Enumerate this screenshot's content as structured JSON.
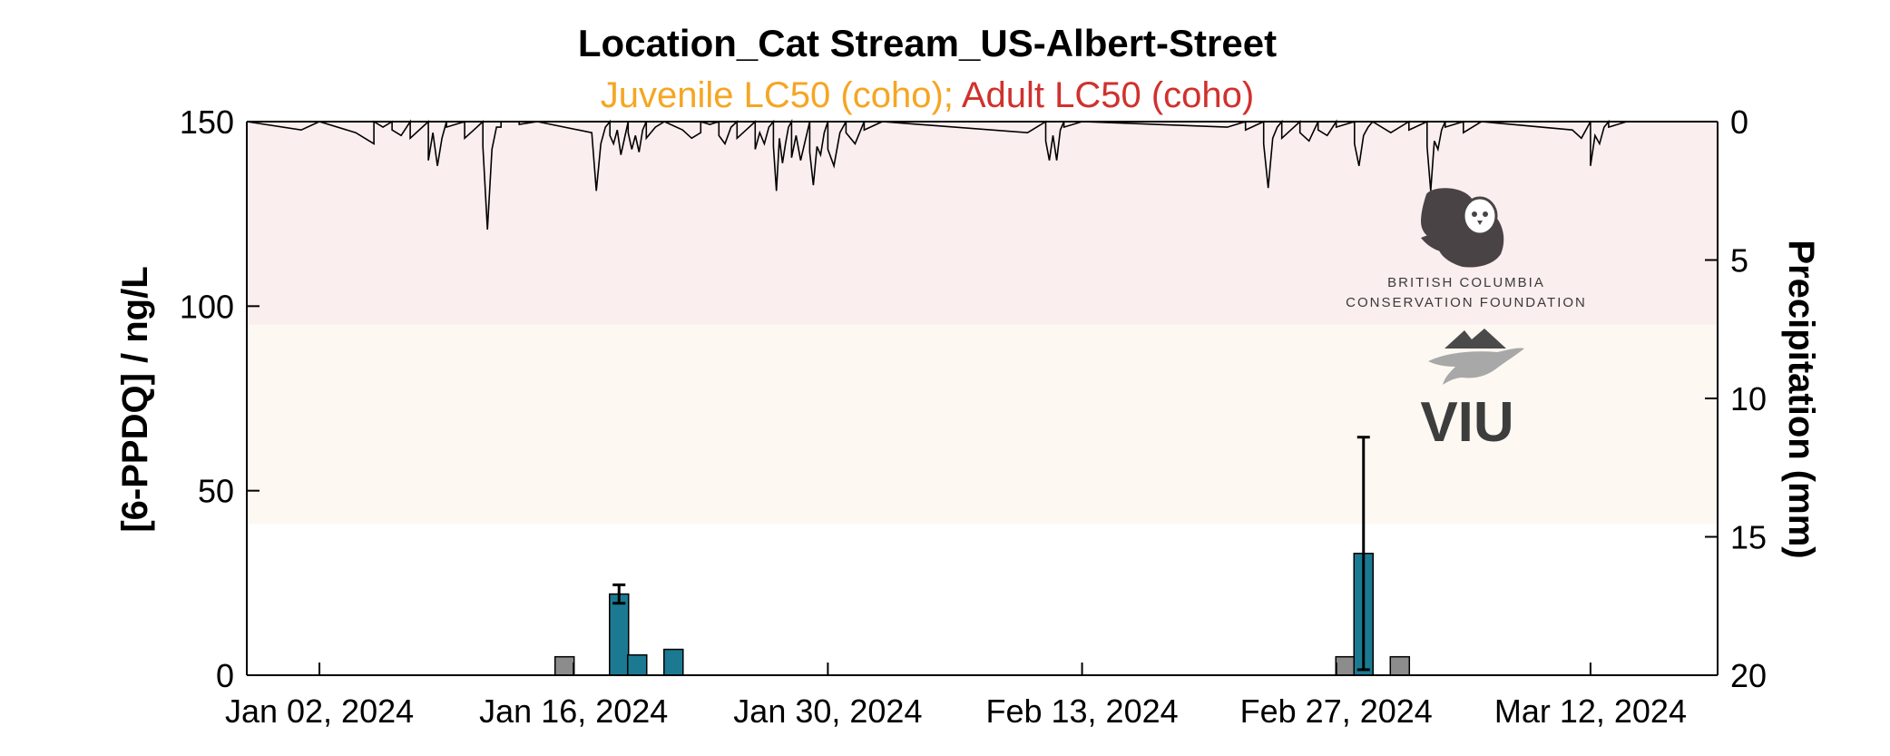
{
  "chart_data": {
    "type": "bar",
    "title": "Location_Cat Stream_US-Albert-Street",
    "subtitle_parts": [
      {
        "text": "Juvenile LC50 (coho)",
        "color": "#f5a623"
      },
      {
        "text": "; ",
        "color": "#f5a623"
      },
      {
        "text": "Adult LC50 (coho)",
        "color": "#d0312d"
      }
    ],
    "ylabel": "[6-PPDQ] / ng/L",
    "y2label": "Precipitation (mm)",
    "xlim": [
      "2023-12-29",
      "2024-03-19"
    ],
    "ylim": [
      0,
      150
    ],
    "y2lim": [
      0,
      20
    ],
    "y2_reversed": true,
    "xticks": [
      {
        "date": "2024-01-02",
        "label": "Jan 02, 2024"
      },
      {
        "date": "2024-01-16",
        "label": "Jan 16, 2024"
      },
      {
        "date": "2024-01-30",
        "label": "Jan 30, 2024"
      },
      {
        "date": "2024-02-13",
        "label": "Feb 13, 2024"
      },
      {
        "date": "2024-02-27",
        "label": "Feb 27, 2024"
      },
      {
        "date": "2024-03-12",
        "label": "Mar 12, 2024"
      }
    ],
    "yticks": [
      {
        "value": 0,
        "label": "0"
      },
      {
        "value": 50,
        "label": "50"
      },
      {
        "value": 100,
        "label": "100"
      },
      {
        "value": 150,
        "label": "150"
      }
    ],
    "y2ticks": [
      {
        "value": 0,
        "label": "0"
      },
      {
        "value": 5,
        "label": "5"
      },
      {
        "value": 10,
        "label": "10"
      },
      {
        "value": 15,
        "label": "15"
      },
      {
        "value": 20,
        "label": "20"
      }
    ],
    "thresholds": [
      {
        "name": "Adult LC50 (coho)",
        "from": 95,
        "to": 150,
        "color": "#fbeeee"
      },
      {
        "name": "Juvenile LC50 (coho)",
        "from": 41,
        "to": 95,
        "color": "#fdf8f1"
      }
    ],
    "samples": [
      {
        "date": "2024-01-15",
        "value": 5,
        "error": 0,
        "detected": false,
        "color": "#8c8c8c"
      },
      {
        "date": "2024-01-18",
        "value": 22,
        "error": 2.5,
        "detected": true,
        "color": "#1b7a92"
      },
      {
        "date": "2024-01-19",
        "value": 5.5,
        "error": 0,
        "detected": true,
        "color": "#1b7a92"
      },
      {
        "date": "2024-01-21",
        "value": 7,
        "error": 0,
        "detected": true,
        "color": "#1b7a92"
      },
      {
        "date": "2024-02-27",
        "value": 5,
        "error": 0,
        "detected": false,
        "color": "#8c8c8c"
      },
      {
        "date": "2024-02-28",
        "value": 33,
        "error": 31.5,
        "detected": true,
        "color": "#1b7a92"
      },
      {
        "date": "2024-03-01",
        "value": 5,
        "error": 0,
        "detected": false,
        "color": "#8c8c8c"
      }
    ],
    "precipitation_mm": [
      [
        "2024-01-01",
        0.3
      ],
      [
        "2024-01-01",
        0.0
      ],
      [
        "2024-01-04",
        0.4
      ],
      [
        "2024-01-04",
        0.0
      ],
      [
        "2024-01-05",
        0.8
      ],
      [
        "2024-01-05",
        0.2
      ],
      [
        "2024-01-05",
        0.0
      ],
      [
        "2024-01-06",
        0.3
      ],
      [
        "2024-01-06",
        0.5
      ],
      [
        "2024-01-06",
        0.0
      ],
      [
        "2024-01-07",
        0.6
      ],
      [
        "2024-01-07",
        0.0
      ],
      [
        "2024-01-08",
        1.4
      ],
      [
        "2024-01-08",
        0.4
      ],
      [
        "2024-01-08",
        1.6
      ],
      [
        "2024-01-08",
        0.6
      ],
      [
        "2024-01-08",
        0.0
      ],
      [
        "2024-01-09",
        0.2
      ],
      [
        "2024-01-09",
        0.0
      ],
      [
        "2024-01-10",
        0.6
      ],
      [
        "2024-01-10",
        0.3
      ],
      [
        "2024-01-10",
        0.0
      ],
      [
        "2024-01-11",
        0.9
      ],
      [
        "2024-01-11",
        3.9
      ],
      [
        "2024-01-11",
        1.0
      ],
      [
        "2024-01-11",
        0.2
      ],
      [
        "2024-01-11",
        0.0
      ],
      [
        "2024-01-12",
        0.2
      ],
      [
        "2024-01-12",
        0.0
      ],
      [
        "2024-01-13",
        0.1
      ],
      [
        "2024-01-13",
        0.0
      ],
      [
        "2024-01-17",
        0.4
      ],
      [
        "2024-01-17",
        2.5
      ],
      [
        "2024-01-17",
        0.8
      ],
      [
        "2024-01-17",
        0.2
      ],
      [
        "2024-01-17",
        0.0
      ],
      [
        "2024-01-18",
        0.5
      ],
      [
        "2024-01-18",
        0.8
      ],
      [
        "2024-01-18",
        0.3
      ],
      [
        "2024-01-18",
        1.2
      ],
      [
        "2024-01-18",
        0.6
      ],
      [
        "2024-01-18",
        0.0
      ],
      [
        "2024-01-19",
        0.4
      ],
      [
        "2024-01-19",
        1.0
      ],
      [
        "2024-01-19",
        0.5
      ],
      [
        "2024-01-19",
        1.1
      ],
      [
        "2024-01-19",
        0.3
      ],
      [
        "2024-01-19",
        0.0
      ],
      [
        "2024-01-20",
        0.6
      ],
      [
        "2024-01-20",
        0.2
      ],
      [
        "2024-01-20",
        0.0
      ],
      [
        "2024-01-22",
        0.3
      ],
      [
        "2024-01-22",
        0.6
      ],
      [
        "2024-01-22",
        0.0
      ],
      [
        "2024-01-23",
        0.4
      ],
      [
        "2024-01-23",
        0.1
      ],
      [
        "2024-01-23",
        0.0
      ],
      [
        "2024-01-24",
        0.5
      ],
      [
        "2024-01-24",
        0.8
      ],
      [
        "2024-01-24",
        0.2
      ],
      [
        "2024-01-24",
        0.0
      ],
      [
        "2024-01-25",
        0.6
      ],
      [
        "2024-01-25",
        0.3
      ],
      [
        "2024-01-25",
        0.0
      ],
      [
        "2024-01-26",
        1.0
      ],
      [
        "2024-01-26",
        0.4
      ],
      [
        "2024-01-26",
        0.8
      ],
      [
        "2024-01-26",
        0.2
      ],
      [
        "2024-01-26",
        0.0
      ],
      [
        "2024-01-27",
        0.9
      ],
      [
        "2024-01-27",
        2.5
      ],
      [
        "2024-01-27",
        0.6
      ],
      [
        "2024-01-27",
        1.5
      ],
      [
        "2024-01-27",
        0.8
      ],
      [
        "2024-01-27",
        0.2
      ],
      [
        "2024-01-27",
        0.0
      ],
      [
        "2024-01-28",
        1.3
      ],
      [
        "2024-01-28",
        0.5
      ],
      [
        "2024-01-28",
        1.4
      ],
      [
        "2024-01-28",
        0.7
      ],
      [
        "2024-01-28",
        0.0
      ],
      [
        "2024-01-29",
        1.1
      ],
      [
        "2024-01-29",
        2.3
      ],
      [
        "2024-01-29",
        0.9
      ],
      [
        "2024-01-29",
        1.2
      ],
      [
        "2024-01-29",
        0.4
      ],
      [
        "2024-01-29",
        0.0
      ],
      [
        "2024-01-30",
        1.0
      ],
      [
        "2024-01-30",
        1.6
      ],
      [
        "2024-01-30",
        0.4
      ],
      [
        "2024-01-30",
        0.0
      ],
      [
        "2024-01-31",
        0.4
      ],
      [
        "2024-01-31",
        0.8
      ],
      [
        "2024-01-31",
        0.0
      ],
      [
        "2024-02-01",
        0.3
      ],
      [
        "2024-02-01",
        0.0
      ],
      [
        "2024-02-10",
        0.4
      ],
      [
        "2024-02-10",
        0.0
      ],
      [
        "2024-02-11",
        0.7
      ],
      [
        "2024-02-11",
        1.4
      ],
      [
        "2024-02-11",
        0.5
      ],
      [
        "2024-02-11",
        1.4
      ],
      [
        "2024-02-11",
        0.3
      ],
      [
        "2024-02-11",
        0.0
      ],
      [
        "2024-02-12",
        0.2
      ],
      [
        "2024-02-12",
        0.0
      ],
      [
        "2024-02-21",
        0.2
      ],
      [
        "2024-02-21",
        0.0
      ],
      [
        "2024-02-22",
        0.3
      ],
      [
        "2024-02-22",
        0.0
      ],
      [
        "2024-02-23",
        0.8
      ],
      [
        "2024-02-23",
        2.4
      ],
      [
        "2024-02-23",
        0.6
      ],
      [
        "2024-02-23",
        0.2
      ],
      [
        "2024-02-23",
        0.0
      ],
      [
        "2024-02-24",
        0.6
      ],
      [
        "2024-02-24",
        0.3
      ],
      [
        "2024-02-24",
        0.0
      ],
      [
        "2024-02-25",
        0.4
      ],
      [
        "2024-02-25",
        0.7
      ],
      [
        "2024-02-25",
        0.0
      ],
      [
        "2024-02-26",
        0.3
      ],
      [
        "2024-02-26",
        0.5
      ],
      [
        "2024-02-26",
        0.0
      ],
      [
        "2024-02-27",
        0.2
      ],
      [
        "2024-02-27",
        0.0
      ],
      [
        "2024-02-28",
        0.8
      ],
      [
        "2024-02-28",
        1.6
      ],
      [
        "2024-02-28",
        0.5
      ],
      [
        "2024-02-28",
        0.2
      ],
      [
        "2024-02-28",
        0.0
      ],
      [
        "2024-03-01",
        0.4
      ],
      [
        "2024-03-01",
        0.0
      ],
      [
        "2024-03-02",
        0.3
      ],
      [
        "2024-03-02",
        0.0
      ],
      [
        "2024-03-03",
        0.9
      ],
      [
        "2024-03-03",
        2.5
      ],
      [
        "2024-03-03",
        0.7
      ],
      [
        "2024-03-03",
        1.0
      ],
      [
        "2024-03-03",
        0.3
      ],
      [
        "2024-03-03",
        0.0
      ],
      [
        "2024-03-04",
        0.2
      ],
      [
        "2024-03-04",
        0.0
      ],
      [
        "2024-03-05",
        0.4
      ],
      [
        "2024-03-05",
        0.2
      ],
      [
        "2024-03-05",
        0.0
      ],
      [
        "2024-03-11",
        0.3
      ],
      [
        "2024-03-11",
        0.6
      ],
      [
        "2024-03-11",
        0.0
      ],
      [
        "2024-03-12",
        1.6
      ],
      [
        "2024-03-12",
        0.5
      ],
      [
        "2024-03-12",
        0.8
      ],
      [
        "2024-03-12",
        0.2
      ],
      [
        "2024-03-12",
        0.0
      ],
      [
        "2024-03-13",
        0.2
      ],
      [
        "2024-03-13",
        0.0
      ]
    ],
    "grid": false
  },
  "logos": {
    "bccf_line1": "BRITISH COLUMBIA",
    "bccf_line2": "CONSERVATION FOUNDATION",
    "viu": "VIU"
  }
}
